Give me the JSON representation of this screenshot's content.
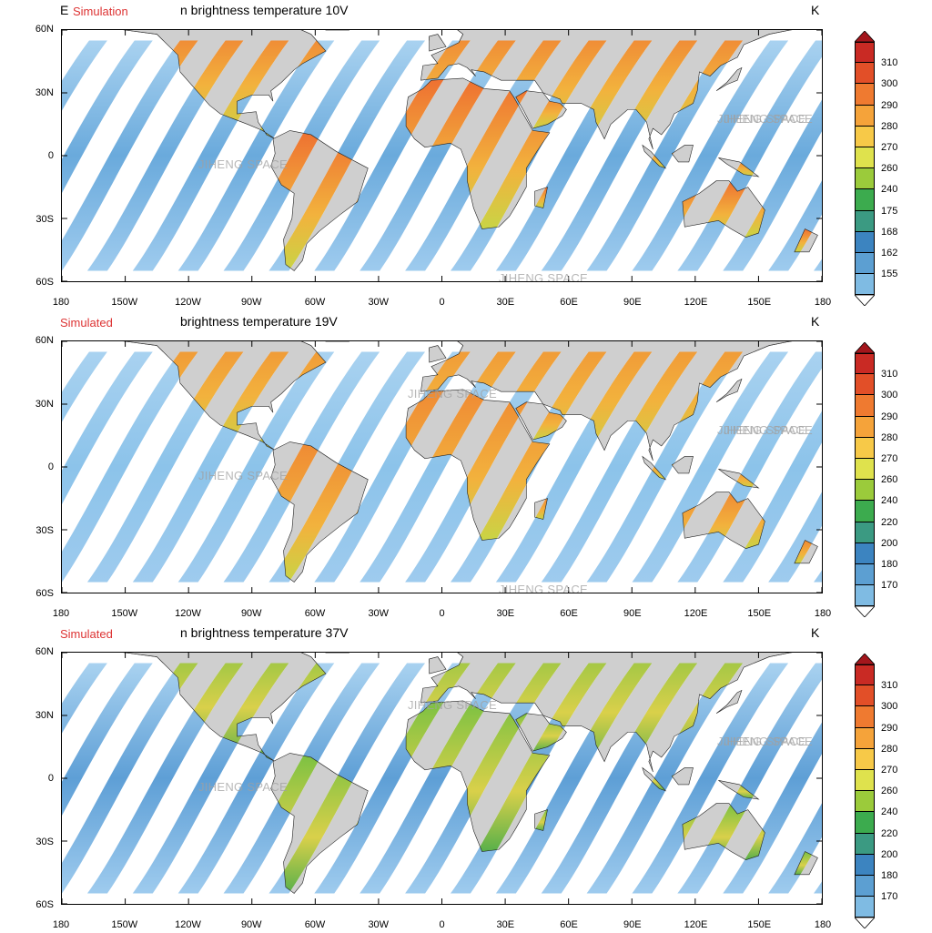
{
  "panels": [
    {
      "label": "Simulation",
      "title": "n brightness temperature 10V",
      "title_prefix": "E",
      "unit": "K",
      "legend_levels": [
        "155",
        "162",
        "168",
        "175",
        "240",
        "260",
        "270",
        "280",
        "290",
        "300",
        "310"
      ],
      "legend_colors": [
        "#e8f3fb",
        "#c6e2f3",
        "#a5d0ec",
        "#7fbbe3",
        "#5c9fd2",
        "#3c84c0",
        "#3b9a82",
        "#3cab4e",
        "#9bcb3b",
        "#dfe24d",
        "#f7c948",
        "#f5a33a",
        "#ef7a30",
        "#e24f28",
        "#c92a24",
        "#a3161c"
      ],
      "watermarks": [
        "JIHENG SPACE",
        "JIHENG SPACE",
        "JIHENG SPACE",
        "JIHENG SPACE"
      ],
      "ocean_color": "#6aaadc",
      "land_hot": "#ee7031"
    },
    {
      "label": "Simulated",
      "title": "brightness temperature 19V",
      "unit": "K",
      "legend_levels": [
        "170",
        "180",
        "200",
        "220",
        "240",
        "260",
        "270",
        "280",
        "290",
        "300",
        "310"
      ],
      "legend_colors": [
        "#e8f3fb",
        "#c6e2f3",
        "#a5d0ec",
        "#7fbbe3",
        "#5c9fd2",
        "#3c84c0",
        "#3b9a82",
        "#3cab4e",
        "#9bcb3b",
        "#dfe24d",
        "#f7c948",
        "#f5a33a",
        "#ef7a30",
        "#e24f28",
        "#c92a24",
        "#a3161c"
      ],
      "watermarks": [
        "JIHENG SPACE",
        "JIHENG SPACE",
        "JIHENG SPACE",
        "JIHENG SPACE",
        "JIHENG SPACE"
      ],
      "ocean_color": "#8cc3ea",
      "land_hot": "#ef8a34"
    },
    {
      "label": "Simulated",
      "title": "n brightness temperature 37V",
      "unit": "K",
      "legend_levels": [
        "170",
        "180",
        "200",
        "220",
        "240",
        "260",
        "270",
        "280",
        "290",
        "300",
        "310"
      ],
      "legend_colors": [
        "#e8f3fb",
        "#c6e2f3",
        "#a5d0ec",
        "#7fbbe3",
        "#5c9fd2",
        "#3c84c0",
        "#3b9a82",
        "#3cab4e",
        "#9bcb3b",
        "#dfe24d",
        "#f7c948",
        "#f5a33a",
        "#ef7a30",
        "#e24f28",
        "#c92a24",
        "#a3161c"
      ],
      "watermarks": [
        "JIHENG SPACE",
        "JIHENG SPACE",
        "JIHENG SPACE",
        "JIHENG SPACE"
      ],
      "ocean_color": "#5e9fd6",
      "land_hot": "#7bc142"
    }
  ],
  "axes": {
    "lat_labels": [
      "60N",
      "30N",
      "0",
      "30S",
      "60S"
    ],
    "lon_labels": [
      "180",
      "150W",
      "120W",
      "90W",
      "60W",
      "30W",
      "0",
      "30E",
      "60E",
      "90E",
      "120E",
      "150E",
      "180"
    ]
  }
}
